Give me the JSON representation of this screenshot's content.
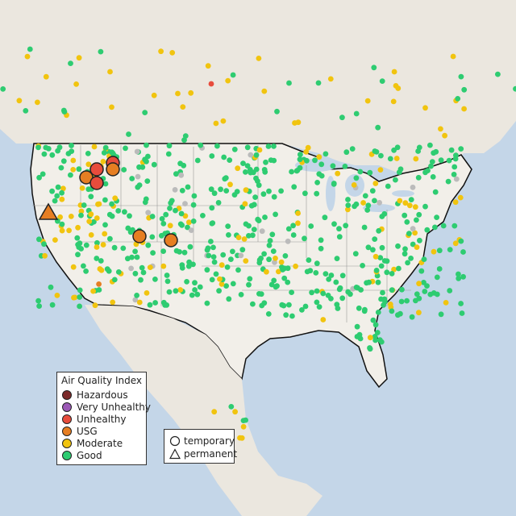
{
  "legend": {
    "title": "Air Quality Index",
    "categories": [
      {
        "label": "Hazardous",
        "color": "#7b2a2a"
      },
      {
        "label": "Very Unhealthy",
        "color": "#9b59b6"
      },
      {
        "label": "Unhealthy",
        "color": "#e74c3c"
      },
      {
        "label": "USG",
        "color": "#e67e22"
      },
      {
        "label": "Moderate",
        "color": "#f1c40f"
      },
      {
        "label": "Good",
        "color": "#2ecc71"
      }
    ]
  },
  "monitor_types": {
    "temporary": "temporary",
    "permanent": "permanent"
  },
  "colors": {
    "ocean": "#c4d6e8",
    "land_us": "#f2efe9",
    "land_other": "#ebe7df",
    "no_data": "#bbbbbb"
  }
}
